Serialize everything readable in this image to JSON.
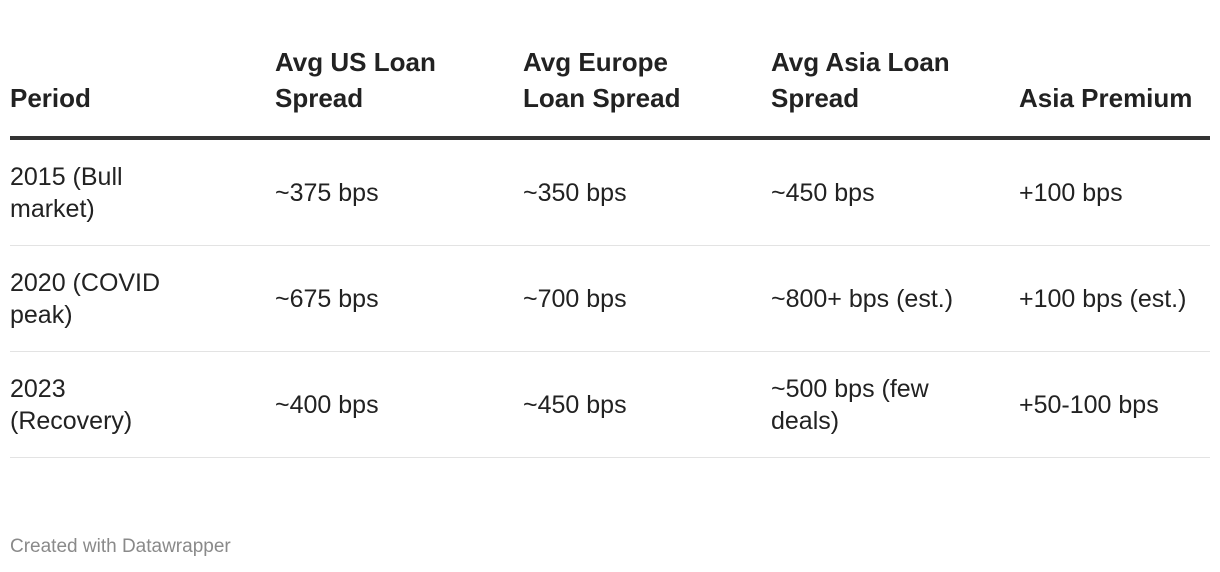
{
  "table": {
    "columns": [
      "Period",
      "Avg US Loan Spread",
      "Avg Europe Loan Spread",
      "Avg Asia Loan Spread",
      "Asia Premium"
    ],
    "rows": [
      [
        "2015 (Bull market)",
        "~375 bps",
        "~350 bps",
        "~450 bps",
        "+100 bps"
      ],
      [
        "2020 (COVID peak)",
        "~675 bps",
        "~700 bps",
        "~800+ bps (est.)",
        "+100 bps (est.)"
      ],
      [
        "2023 (Recovery)",
        "~400 bps",
        "~450 bps",
        "~500 bps (few deals)",
        "+50-100 bps"
      ]
    ]
  },
  "footer": "Created with Datawrapper"
}
